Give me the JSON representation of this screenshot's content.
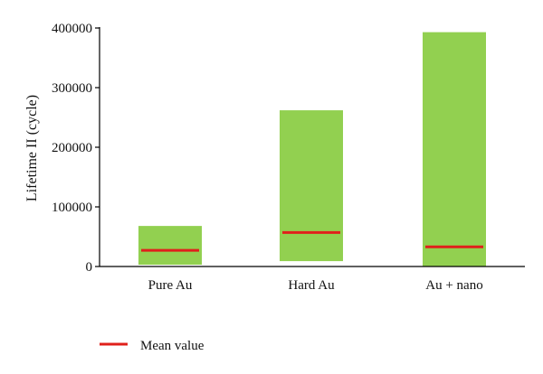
{
  "chart_data": {
    "type": "bar",
    "categories": [
      "Pure Au",
      "Hard Au",
      "Au + nano"
    ],
    "ranges": [
      {
        "category": "Pure Au",
        "min": 3000,
        "max": 68000,
        "mean": 27000
      },
      {
        "category": "Hard Au",
        "min": 9000,
        "max": 262000,
        "mean": 57000
      },
      {
        "category": "Au + nano",
        "min": 0,
        "max": 393000,
        "mean": 33000
      }
    ],
    "ylabel": "Lifetime II (cycle)",
    "xlabel": "",
    "ylim": [
      0,
      400000
    ],
    "yticks": [
      0,
      100000,
      200000,
      300000,
      400000
    ],
    "ytick_labels": [
      "0",
      "100000",
      "200000",
      "300000",
      "400000"
    ],
    "grid": false,
    "legend": {
      "position": "bottom-left",
      "entries": [
        {
          "label": "Mean value"
        }
      ]
    },
    "colors": {
      "range_bar": "#92d050",
      "mean_line": "#e0201b",
      "axis": "#000000"
    }
  }
}
